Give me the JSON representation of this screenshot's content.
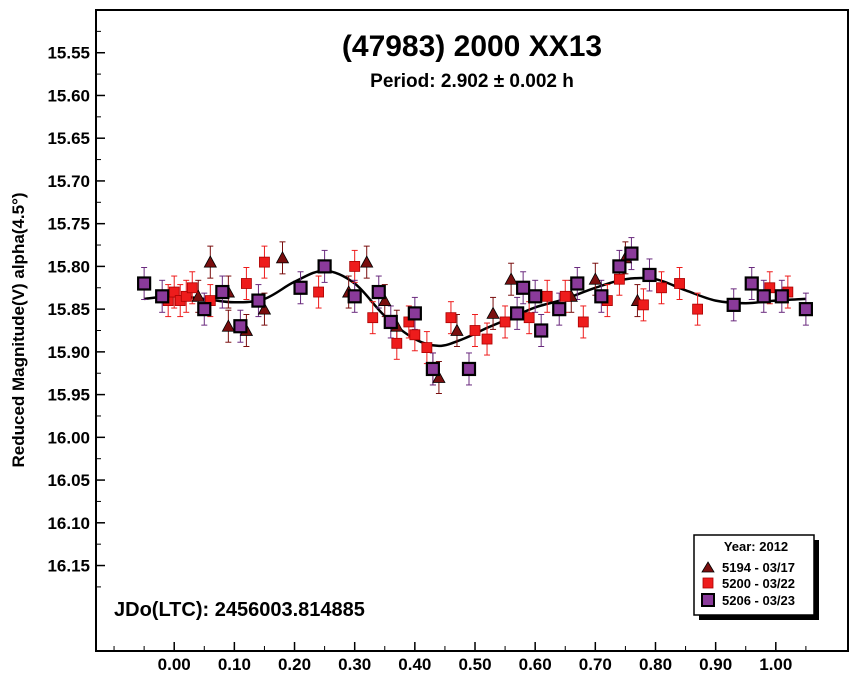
{
  "chart_data": {
    "type": "scatter",
    "title": "(47983) 2000 XX13",
    "subtitle": "Period: 2.902 ± 0.002 h",
    "xlabel": "",
    "ylabel": "Reduced Magnitude(V) alpha(4.5°)",
    "xlim": [
      -0.13,
      1.12
    ],
    "ylim": [
      15.5,
      16.25
    ],
    "y_inverted": true,
    "x_ticks": [
      "0.00",
      "0.10",
      "0.20",
      "0.30",
      "0.40",
      "0.50",
      "0.60",
      "0.70",
      "0.80",
      "0.90",
      "1.00"
    ],
    "y_ticks": [
      "15.55",
      "15.60",
      "15.65",
      "15.70",
      "15.75",
      "15.80",
      "15.85",
      "15.90",
      "15.95",
      "16.00",
      "16.05",
      "16.10",
      "16.15"
    ],
    "annotation": "JDo(LTC): 2456003.814885",
    "legend": {
      "title": "Year: 2012",
      "position": "bottom-right",
      "entries": [
        "5194 - 03/17",
        "5200 - 03/22",
        "5206 - 03/23"
      ]
    },
    "series": [
      {
        "name": "5194 - 03/17",
        "marker": "triangle",
        "color": "#7a0e0e",
        "points": [
          [
            0.06,
            15.795
          ],
          [
            0.04,
            15.835
          ],
          [
            0.09,
            15.83
          ],
          [
            0.09,
            15.87
          ],
          [
            0.12,
            15.875
          ],
          [
            0.15,
            15.85
          ],
          [
            0.18,
            15.79
          ],
          [
            0.29,
            15.83
          ],
          [
            0.32,
            15.795
          ],
          [
            0.35,
            15.84
          ],
          [
            0.37,
            15.87
          ],
          [
            0.43,
            15.92
          ],
          [
            0.44,
            15.93
          ],
          [
            0.47,
            15.875
          ],
          [
            0.53,
            15.855
          ],
          [
            0.56,
            15.815
          ],
          [
            0.66,
            15.835
          ],
          [
            0.7,
            15.815
          ],
          [
            0.75,
            15.79
          ],
          [
            0.77,
            15.84
          ]
        ]
      },
      {
        "name": "5200 - 03/22",
        "marker": "square",
        "color": "#ee1c1c",
        "points": [
          [
            -0.01,
            15.84
          ],
          [
            0.0,
            15.83
          ],
          [
            0.01,
            15.84
          ],
          [
            0.02,
            15.835
          ],
          [
            0.03,
            15.825
          ],
          [
            0.06,
            15.84
          ],
          [
            0.12,
            15.82
          ],
          [
            0.15,
            15.795
          ],
          [
            0.24,
            15.83
          ],
          [
            0.3,
            15.8
          ],
          [
            0.33,
            15.86
          ],
          [
            0.37,
            15.89
          ],
          [
            0.39,
            15.865
          ],
          [
            0.4,
            15.88
          ],
          [
            0.42,
            15.895
          ],
          [
            0.46,
            15.86
          ],
          [
            0.5,
            15.875
          ],
          [
            0.52,
            15.885
          ],
          [
            0.55,
            15.865
          ],
          [
            0.59,
            15.86
          ],
          [
            0.62,
            15.835
          ],
          [
            0.65,
            15.835
          ],
          [
            0.68,
            15.865
          ],
          [
            0.72,
            15.84
          ],
          [
            0.74,
            15.815
          ],
          [
            0.78,
            15.845
          ],
          [
            0.81,
            15.825
          ],
          [
            0.84,
            15.82
          ],
          [
            0.87,
            15.85
          ],
          [
            0.99,
            15.825
          ],
          [
            1.02,
            15.83
          ]
        ]
      },
      {
        "name": "5206 - 03/23",
        "marker": "square",
        "color": "#5a1a6e",
        "points": [
          [
            -0.05,
            15.82
          ],
          [
            -0.02,
            15.835
          ],
          [
            0.05,
            15.85
          ],
          [
            0.08,
            15.83
          ],
          [
            0.11,
            15.87
          ],
          [
            0.14,
            15.84
          ],
          [
            0.21,
            15.825
          ],
          [
            0.25,
            15.8
          ],
          [
            0.3,
            15.835
          ],
          [
            0.34,
            15.83
          ],
          [
            0.36,
            15.865
          ],
          [
            0.4,
            15.855
          ],
          [
            0.43,
            15.92
          ],
          [
            0.49,
            15.92
          ],
          [
            0.57,
            15.855
          ],
          [
            0.58,
            15.825
          ],
          [
            0.6,
            15.835
          ],
          [
            0.61,
            15.875
          ],
          [
            0.64,
            15.85
          ],
          [
            0.67,
            15.82
          ],
          [
            0.71,
            15.835
          ],
          [
            0.74,
            15.8
          ],
          [
            0.76,
            15.785
          ],
          [
            0.79,
            15.81
          ],
          [
            0.93,
            15.845
          ],
          [
            0.96,
            15.82
          ],
          [
            0.98,
            15.835
          ],
          [
            1.01,
            15.835
          ],
          [
            1.05,
            15.85
          ]
        ]
      }
    ],
    "fit_curve": {
      "color": "#000000",
      "points": [
        [
          -0.05,
          15.838
        ],
        [
          0.0,
          15.835
        ],
        [
          0.05,
          15.838
        ],
        [
          0.1,
          15.842
        ],
        [
          0.15,
          15.838
        ],
        [
          0.2,
          15.818
        ],
        [
          0.25,
          15.805
        ],
        [
          0.3,
          15.82
        ],
        [
          0.35,
          15.858
        ],
        [
          0.4,
          15.885
        ],
        [
          0.44,
          15.893
        ],
        [
          0.48,
          15.885
        ],
        [
          0.52,
          15.872
        ],
        [
          0.56,
          15.86
        ],
        [
          0.6,
          15.848
        ],
        [
          0.65,
          15.838
        ],
        [
          0.7,
          15.825
        ],
        [
          0.75,
          15.815
        ],
        [
          0.8,
          15.815
        ],
        [
          0.85,
          15.828
        ],
        [
          0.9,
          15.84
        ],
        [
          0.95,
          15.843
        ],
        [
          1.0,
          15.84
        ],
        [
          1.05,
          15.838
        ]
      ]
    }
  }
}
